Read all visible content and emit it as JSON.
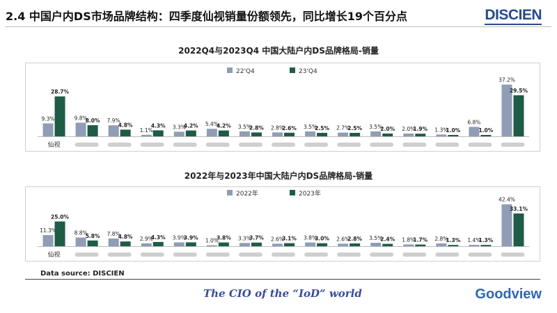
{
  "page": {
    "title": "2.4 中国户内DS市场品牌结构：四季度仙视销量份额领先，同比增长19个百分点",
    "logo": "DISCIEN",
    "source": "Data source:  DISCIEN",
    "tagline": "The CIO of the “IoD” world",
    "brand": "Goodview"
  },
  "colors": {
    "series_a": "#8f9db6",
    "series_b": "#1e5c46"
  },
  "chart_data": [
    {
      "type": "bar",
      "title": "2022Q4与2023Q4 中国大陆户内DS品牌格局-销量",
      "categories": [
        "仙视",
        "",
        "",
        "",
        "",
        "",
        "",
        "",
        "",
        "",
        "",
        "",
        "",
        "",
        ""
      ],
      "series": [
        {
          "name": "22'Q4",
          "values": [
            9.3,
            9.8,
            7.9,
            1.1,
            3.3,
            5.4,
            3.5,
            2.8,
            3.5,
            2.7,
            3.5,
            2.0,
            1.3,
            6.8,
            37.2
          ]
        },
        {
          "name": "23'Q4",
          "values": [
            28.7,
            8.0,
            4.8,
            4.3,
            4.2,
            4.2,
            2.8,
            2.6,
            2.5,
            2.5,
            2.0,
            1.9,
            1.0,
            1.0,
            29.5
          ]
        }
      ],
      "value_labels": [
        [
          "9.3%",
          "9.8%",
          "7.9%",
          "1.1%",
          "3.3%",
          "5.4%",
          "3.5%",
          "2.8%",
          "3.5%",
          "2.7%",
          "3.5%",
          "2.0%",
          "1.3%",
          "6.8%",
          "37.2%"
        ],
        [
          "28.7%",
          "8.0%",
          "4.8%",
          "4.3%",
          "4.2%",
          "4.2%",
          "2.8%",
          "2.6%",
          "2.5%",
          "2.5%",
          "2.0%",
          "1.9%",
          "1.0%",
          "1.0%",
          "29.5%"
        ]
      ],
      "ylim": [
        0,
        40
      ],
      "legend": "top-center",
      "grid": false
    },
    {
      "type": "bar",
      "title": "2022年与2023年中国大陆户内DS品牌格局-销量",
      "categories": [
        "仙视",
        "",
        "",
        "",
        "",
        "",
        "",
        "",
        "",
        "",
        "",
        "",
        "",
        "",
        ""
      ],
      "series": [
        {
          "name": "2022年",
          "values": [
            11.3,
            8.8,
            7.8,
            2.9,
            3.9,
            1.0,
            3.3,
            2.6,
            3.8,
            2.6,
            3.5,
            1.8,
            2.8,
            1.4,
            42.4
          ]
        },
        {
          "name": "2023年",
          "values": [
            25.0,
            5.8,
            4.8,
            4.3,
            3.9,
            3.8,
            3.7,
            3.1,
            3.0,
            2.8,
            2.4,
            1.7,
            1.3,
            1.3,
            33.1
          ]
        }
      ],
      "value_labels": [
        [
          "11.3%",
          "8.8%",
          "7.8%",
          "2.9%",
          "3.9%",
          "1.0%",
          "3.3%",
          "2.6%",
          "3.8%",
          "2.6%",
          "3.5%",
          "1.8%",
          "2.8%",
          "1.4%",
          "42.4%"
        ],
        [
          "25.0%",
          "5.8%",
          "4.8%",
          "4.3%",
          "3.9%",
          "3.8%",
          "3.7%",
          "3.1%",
          "3.0%",
          "2.8%",
          "2.4%",
          "1.7%",
          "1.3%",
          "1.3%",
          "33.1%"
        ]
      ],
      "ylim": [
        0,
        45
      ],
      "legend": "top-center",
      "grid": false
    }
  ]
}
